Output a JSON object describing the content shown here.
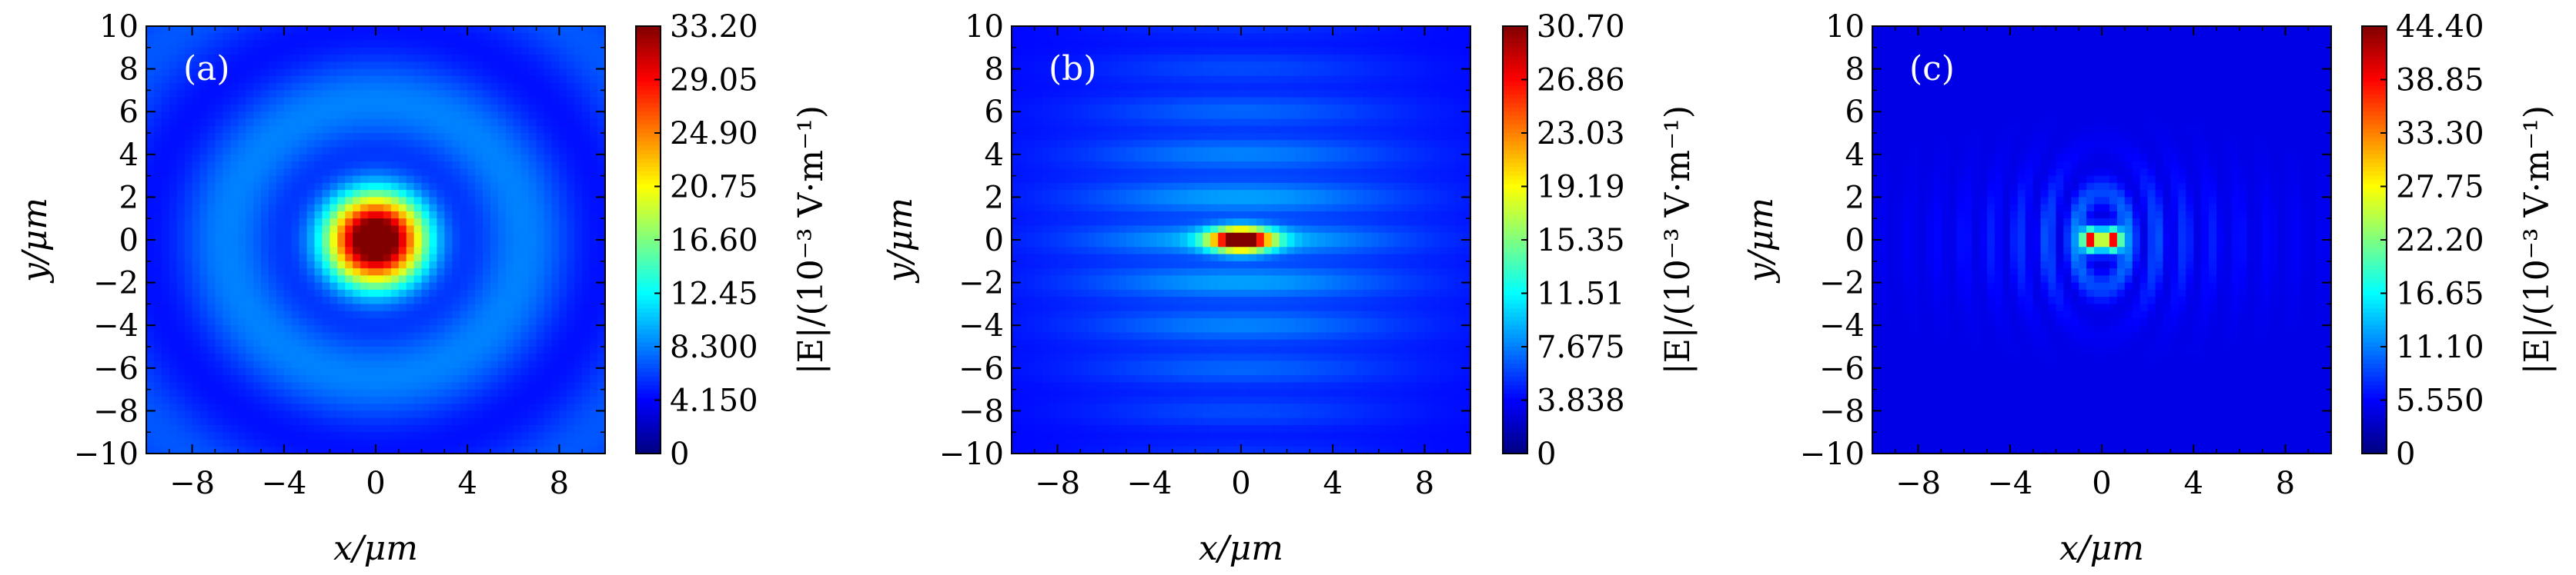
{
  "chart_data": [
    {
      "type": "heatmap",
      "panel_label": "(a)",
      "xlabel": "x/μm",
      "ylabel": "y/μm",
      "xlim": [
        -10,
        10
      ],
      "ylim": [
        -10,
        10
      ],
      "x_ticks": [
        "−8",
        "−4",
        "0",
        "4",
        "8"
      ],
      "x_tick_values": [
        -8,
        -4,
        0,
        4,
        8
      ],
      "y_ticks": [
        "10",
        "8",
        "6",
        "4",
        "2",
        "0",
        "−2",
        "−4",
        "−6",
        "−8",
        "−10"
      ],
      "y_tick_values": [
        10,
        8,
        6,
        4,
        2,
        0,
        -2,
        -4,
        -6,
        -8,
        -10
      ],
      "colorbar_label": "|E|/(10⁻³ V·m⁻¹)",
      "colorbar_ticks": [
        "33.20",
        "29.05",
        "24.90",
        "20.75",
        "16.60",
        "12.45",
        "8.300",
        "4.150",
        "0"
      ],
      "colorbar_range": [
        0,
        33.2
      ],
      "colormap": "jet",
      "pattern": "concentric circular rings around a central peak at (0, 0)",
      "peak_value": 33.2
    },
    {
      "type": "heatmap",
      "panel_label": "(b)",
      "xlabel": "x/μm",
      "ylabel": "y/μm",
      "xlim": [
        -10,
        10
      ],
      "ylim": [
        -10,
        10
      ],
      "x_ticks": [
        "−8",
        "−4",
        "0",
        "4",
        "8"
      ],
      "x_tick_values": [
        -8,
        -4,
        0,
        4,
        8
      ],
      "y_ticks": [
        "10",
        "8",
        "6",
        "4",
        "2",
        "0",
        "−2",
        "−4",
        "−6",
        "−8",
        "−10"
      ],
      "y_tick_values": [
        10,
        8,
        6,
        4,
        2,
        0,
        -2,
        -4,
        -6,
        -8,
        -10
      ],
      "colorbar_label": "|E|/(10⁻³ V·m⁻¹)",
      "colorbar_ticks": [
        "30.70",
        "26.86",
        "23.03",
        "19.19",
        "15.35",
        "11.51",
        "7.675",
        "3.838",
        "0"
      ],
      "colorbar_range": [
        0,
        30.7
      ],
      "colormap": "jet",
      "pattern": "horizontally elongated central spot with faint fringes along the y direction",
      "peak_value": 30.7
    },
    {
      "type": "heatmap",
      "panel_label": "(c)",
      "xlabel": "x/μm",
      "ylabel": "y/μm",
      "xlim": [
        -10,
        10
      ],
      "ylim": [
        -10,
        10
      ],
      "x_ticks": [
        "−8",
        "−4",
        "0",
        "4",
        "8"
      ],
      "x_tick_values": [
        -8,
        -4,
        0,
        4,
        8
      ],
      "y_ticks": [
        "10",
        "8",
        "6",
        "4",
        "2",
        "0",
        "−2",
        "−4",
        "−6",
        "−8",
        "−10"
      ],
      "y_tick_values": [
        10,
        8,
        6,
        4,
        2,
        0,
        -2,
        -4,
        -6,
        -8,
        -10
      ],
      "colorbar_label": "|E|/(10⁻³ V·m⁻¹)",
      "colorbar_ticks": [
        "44.40",
        "38.85",
        "33.30",
        "27.75",
        "22.20",
        "16.65",
        "11.10",
        "5.550",
        "0"
      ],
      "colorbar_range": [
        0,
        44.4
      ],
      "colormap": "jet",
      "pattern": "two peaks near x = ±0.5 μm with curved fringes spreading along the x direction",
      "peak_value": 44.4
    }
  ]
}
